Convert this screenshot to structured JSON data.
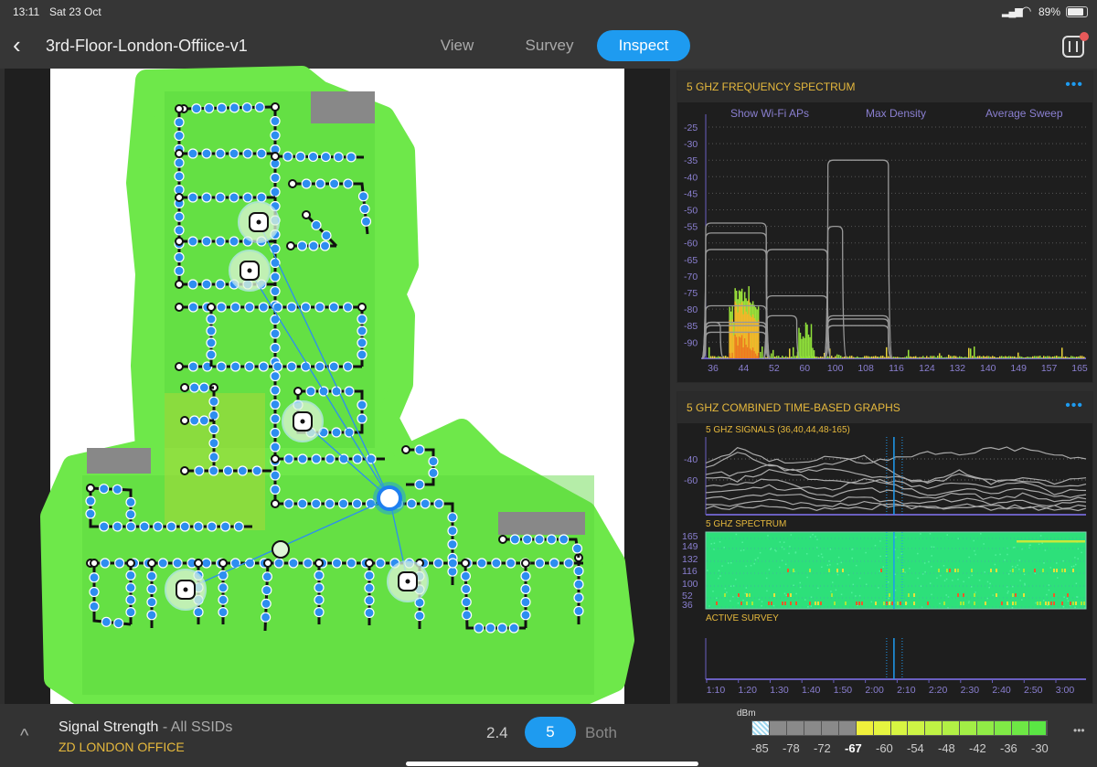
{
  "status_bar": {
    "time": "13:11",
    "date": "Sat 23 Oct",
    "battery": "89%"
  },
  "nav": {
    "back_icon": "chevron-left-icon",
    "title": "3rd-Floor-London-Offiice-v1",
    "tabs": [
      {
        "label": "View"
      },
      {
        "label": "Survey"
      },
      {
        "label": "Inspect",
        "active": true
      }
    ],
    "sidebar_icon": "panel-toggle-icon"
  },
  "colors": {
    "accent": "#1e9bf0",
    "heading": "#e6b93d",
    "axis": "#8a7fd0",
    "heatmap_green": "#2de07a"
  },
  "spectrum_panel": {
    "title": "5 GHZ FREQUENCY SPECTRUM",
    "more": "•••",
    "options": [
      "Show Wi-Fi APs",
      "Max Density",
      "Average Sweep"
    ]
  },
  "combined_panel": {
    "title": "5 GHZ COMBINED TIME-BASED GRAPHS",
    "more": "•••",
    "signals_title": "5 GHZ SIGNALS (36,40,44,48-165)",
    "spectrum_title": "5 GHZ SPECTRUM",
    "active_title": "ACTIVE SURVEY"
  },
  "chart_data": [
    {
      "type": "line",
      "name": "5 GHz frequency spectrum",
      "ylim": [
        -95,
        -22
      ],
      "y_ticks": [
        "-25",
        "-30",
        "-35",
        "-40",
        "-45",
        "-50",
        "-55",
        "-60",
        "-65",
        "-70",
        "-75",
        "-80",
        "-85",
        "-90"
      ],
      "x_ticks": [
        "36",
        "44",
        "52",
        "60",
        "100",
        "108",
        "116",
        "124",
        "132",
        "140",
        "149",
        "157",
        "165"
      ],
      "ap_envelopes": [
        {
          "channels": [
            36,
            48
          ],
          "dbm": -54
        },
        {
          "channels": [
            36,
            48
          ],
          "dbm": -57
        },
        {
          "channels": [
            36,
            48
          ],
          "dbm": -62
        },
        {
          "channels": [
            36,
            48
          ],
          "dbm": -79
        },
        {
          "channels": [
            36,
            48
          ],
          "dbm": -84
        },
        {
          "channels": [
            36,
            48
          ],
          "dbm": -85
        },
        {
          "channels": [
            36,
            48
          ],
          "dbm": -87
        },
        {
          "channels": [
            36,
            36
          ],
          "dbm": -84
        },
        {
          "channels": [
            52,
            64
          ],
          "dbm": -62
        },
        {
          "channels": [
            52,
            64
          ],
          "dbm": -76
        },
        {
          "channels": [
            52,
            56
          ],
          "dbm": -82
        },
        {
          "channels": [
            100,
            112
          ],
          "dbm": -35
        },
        {
          "channels": [
            100,
            100
          ],
          "dbm": -55
        },
        {
          "channels": [
            100,
            112
          ],
          "dbm": -82
        },
        {
          "channels": [
            100,
            112
          ],
          "dbm": -83
        },
        {
          "channels": [
            100,
            112
          ],
          "dbm": -85
        }
      ],
      "interference_peaks": [
        {
          "channel": 44,
          "dbm": -73
        },
        {
          "channel": 60,
          "dbm": -84
        }
      ],
      "grid": true
    },
    {
      "type": "line",
      "name": "5 GHz signals",
      "y_ticks": [
        "-40",
        "-60"
      ],
      "ylim": [
        -93,
        -21
      ],
      "x_ticks": [
        "1:10",
        "1:20",
        "1:30",
        "1:40",
        "1:50",
        "2:00",
        "2:10",
        "2:20",
        "2:30",
        "2:40",
        "2:50",
        "3:00"
      ],
      "cursor_time": "2:09",
      "series": [
        {
          "values": [
            -45,
            -31,
            -41,
            -44,
            -38,
            -43,
            -40,
            -33,
            -36,
            -29,
            -31,
            -37,
            -40
          ]
        },
        {
          "values": [
            -48,
            -32,
            -46,
            -51,
            -44,
            -37,
            -56,
            -64,
            -56,
            -61,
            -59,
            -62,
            -58
          ]
        },
        {
          "values": [
            -53,
            -55,
            -47,
            -52,
            -48,
            -55,
            -58,
            -62,
            -50,
            -63,
            -60,
            -66,
            -64
          ]
        },
        {
          "values": [
            -56,
            -60,
            -51,
            -57,
            -60,
            -62,
            -61,
            -69,
            -62,
            -66,
            -63,
            -72,
            -70
          ]
        },
        {
          "values": [
            -67,
            -64,
            -58,
            -66,
            -68,
            -60,
            -66,
            -74,
            -68,
            -71,
            -70,
            -76,
            -74
          ]
        },
        {
          "values": [
            -72,
            -70,
            -66,
            -70,
            -74,
            -68,
            -72,
            -77,
            -72,
            -78,
            -74,
            -80,
            -78
          ]
        },
        {
          "values": [
            -79,
            -76,
            -73,
            -75,
            -79,
            -77,
            -81,
            -82,
            -78,
            -82,
            -80,
            -84,
            -81
          ]
        },
        {
          "values": [
            -85,
            -84,
            -79,
            -83,
            -84,
            -82,
            -85,
            -86,
            -84,
            -87,
            -85,
            -86,
            -85
          ]
        },
        {
          "values": [
            -87,
            -86,
            -86,
            -88,
            -86,
            -87,
            -84,
            -86,
            -88,
            -85,
            -87,
            -88,
            -87
          ]
        }
      ]
    },
    {
      "type": "heatmap",
      "name": "5 GHz spectrum",
      "y_ticks": [
        "165",
        "149",
        "132",
        "116",
        "100",
        "52",
        "36"
      ]
    },
    {
      "type": "line",
      "name": "Active survey",
      "x_ticks": [
        "1:10",
        "1:20",
        "1:30",
        "1:40",
        "1:50",
        "2:00",
        "2:10",
        "2:20",
        "2:30",
        "2:40",
        "2:50",
        "3:00"
      ]
    }
  ],
  "bottom": {
    "expand_icon": "chevron-up-icon",
    "metric": "Signal Strength",
    "separator": " - ",
    "scope": "All SSIDs",
    "network": "ZD LONDON OFFICE",
    "bands": [
      {
        "label": "2.4"
      },
      {
        "label": "5",
        "active": true
      },
      {
        "label": "Both"
      }
    ],
    "legend_unit": "dBm",
    "legend_ticks": [
      "-85",
      "-78",
      "-72",
      "-67",
      "-60",
      "-54",
      "-48",
      "-42",
      "-36",
      "-30"
    ],
    "legend_threshold": "-67",
    "more": "•••"
  }
}
